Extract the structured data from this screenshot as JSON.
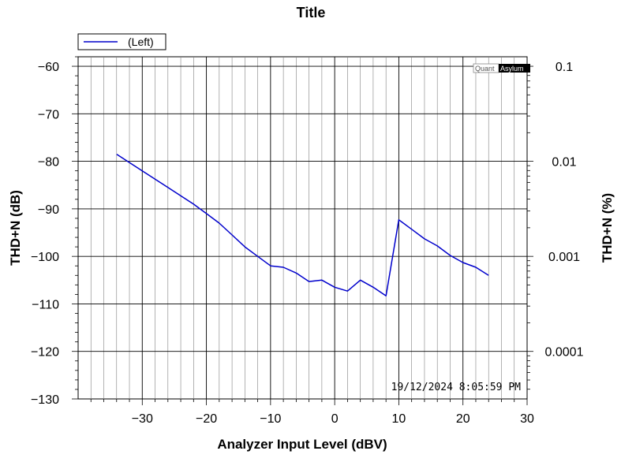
{
  "chart_data": {
    "type": "line",
    "title": "Title",
    "xlabel": "Analyzer Input Level (dBV)",
    "ylabel": "THD+N (dB)",
    "ylabel_right": "THD+N (%)",
    "xlim": [
      -40,
      30
    ],
    "ylim": [
      -130,
      -58
    ],
    "x_ticks": [
      -30,
      -20,
      -10,
      0,
      10,
      20,
      30
    ],
    "y_ticks": [
      -60,
      -70,
      -80,
      -90,
      -100,
      -110,
      -120,
      -130
    ],
    "right_ticks": [
      {
        "label": "0.1",
        "db": -60
      },
      {
        "label": "0.01",
        "db": -80
      },
      {
        "label": "0.001",
        "db": -100
      },
      {
        "label": "0.0001",
        "db": -120
      }
    ],
    "grid": true,
    "legend_position": "top-left",
    "timestamp": "19/12/2024 8:05:59 PM",
    "watermark": [
      "Quant",
      "Asylum"
    ],
    "series": [
      {
        "name": "(Left)",
        "color": "#0000cc",
        "x": [
          -34,
          -30,
          -26,
          -22,
          -20,
          -18,
          -16,
          -14,
          -12,
          -10,
          -8,
          -6,
          -4,
          -2,
          0,
          2,
          4,
          6,
          8,
          10,
          12,
          14,
          16,
          18,
          20,
          22,
          24
        ],
        "y": [
          -78.5,
          -82,
          -85.5,
          -89,
          -91,
          -93,
          -95.5,
          -98,
          -100,
          -102,
          -102.3,
          -103.5,
          -105.3,
          -105,
          -106.5,
          -107.3,
          -105,
          -106.5,
          -108.3,
          -92.3,
          -94.3,
          -96.3,
          -97.8,
          -99.8,
          -101.3,
          -102.3,
          -104
        ]
      }
    ]
  }
}
